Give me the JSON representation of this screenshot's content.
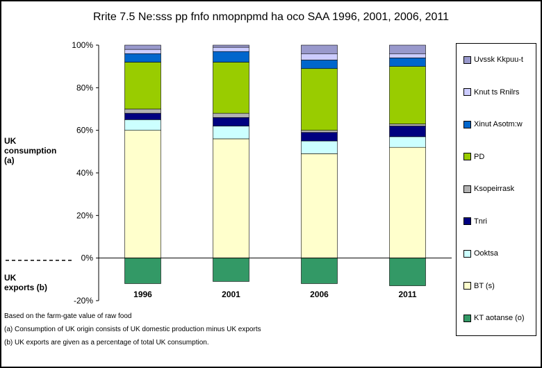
{
  "chart_data": {
    "type": "bar",
    "stacked": true,
    "title": "Rrite 7.5 Ne:sss pp fnfo nmopnpmd ha oco SAA 1996, 2001, 2006, 2011",
    "categories": [
      "1996",
      "2001",
      "2006",
      "2011"
    ],
    "ylim": [
      -20,
      100
    ],
    "yticks": [
      "-20%",
      "0%",
      "20%",
      "40%",
      "60%",
      "80%",
      "100%"
    ],
    "ytick_values": [
      -20,
      0,
      20,
      40,
      60,
      80,
      100
    ],
    "grid": false,
    "legend_position": "right",
    "series": [
      {
        "name": "KT aotanse (o)",
        "color": "#339966",
        "values": [
          -12,
          -11,
          -12,
          -13
        ]
      },
      {
        "name": "BT (s)",
        "color": "#FFFFCC",
        "values": [
          60,
          56,
          49,
          52
        ]
      },
      {
        "name": "Ooktsa",
        "color": "#CCFFFF",
        "values": [
          5,
          6,
          6,
          5
        ]
      },
      {
        "name": "Tnri",
        "color": "#000080",
        "values": [
          3,
          4,
          4,
          5
        ]
      },
      {
        "name": "Ksopeirrask",
        "color": "#B2B2B2",
        "values": [
          2,
          2,
          1,
          1
        ]
      },
      {
        "name": "PD",
        "color": "#99CC00",
        "values": [
          22,
          24,
          29,
          27
        ]
      },
      {
        "name": "Xinut Asotm:w",
        "color": "#0066CC",
        "values": [
          4,
          5,
          4,
          4
        ]
      },
      {
        "name": "Knut ts Rnilrs",
        "color": "#CCCCFF",
        "values": [
          2,
          2,
          3,
          2
        ]
      },
      {
        "name": "Uvssk Kkpuu-t",
        "color": "#9999CC",
        "values": [
          2,
          1,
          4,
          4
        ]
      }
    ]
  },
  "side_labels": {
    "consumption": [
      "UK",
      "consumption",
      "(a)"
    ],
    "exports": [
      "UK",
      "exports (b)"
    ]
  },
  "notes": [
    "Based on the farm-gate value of raw food",
    "(a) Consumption of UK origin consists of UK domestic production minus UK exports",
    "(b) UK exports are given as a percentage of total UK consumption."
  ]
}
